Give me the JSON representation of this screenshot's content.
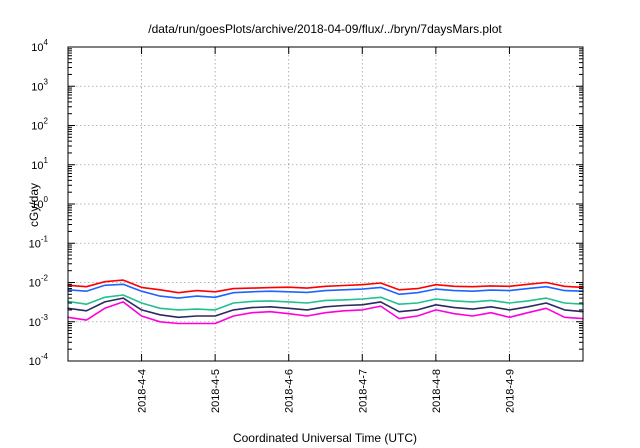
{
  "chart_data": {
    "type": "line",
    "title": "/data/run/goesPlots/archive/2018-04-09/flux/../bryn/7daysMars.plot",
    "xlabel": "Coordinated Universal Time (UTC)",
    "ylabel": "cGy/day",
    "y_scale": "log",
    "ylim": [
      0.0001,
      10000
    ],
    "y_ticks": [
      {
        "base": "10",
        "exp": "-4",
        "value": 0.0001
      },
      {
        "base": "10",
        "exp": "-3",
        "value": 0.001
      },
      {
        "base": "10",
        "exp": "-2",
        "value": 0.01
      },
      {
        "base": "10",
        "exp": "-1",
        "value": 0.1
      },
      {
        "base": "10",
        "exp": "0",
        "value": 1
      },
      {
        "base": "10",
        "exp": "1",
        "value": 10
      },
      {
        "base": "10",
        "exp": "2",
        "value": 100
      },
      {
        "base": "10",
        "exp": "3",
        "value": 1000
      },
      {
        "base": "10",
        "exp": "4",
        "value": 10000
      }
    ],
    "xlim": [
      "2018-04-03 00:00",
      "2018-04-10 00:00"
    ],
    "x_ticks": [
      "2018-4-4",
      "2018-4-5",
      "2018-4-6",
      "2018-4-7",
      "2018-4-8",
      "2018-4-9"
    ],
    "x_tick_dates": [
      "2018-04-04",
      "2018-04-05",
      "2018-04-06",
      "2018-04-07",
      "2018-04-08",
      "2018-04-09"
    ],
    "grid": true,
    "x": [
      "04-03 00:00",
      "04-03 06:00",
      "04-03 12:00",
      "04-03 18:00",
      "04-04 00:00",
      "04-04 06:00",
      "04-04 12:00",
      "04-04 18:00",
      "04-05 00:00",
      "04-05 06:00",
      "04-05 12:00",
      "04-05 18:00",
      "04-06 00:00",
      "04-06 06:00",
      "04-06 12:00",
      "04-06 18:00",
      "04-07 00:00",
      "04-07 06:00",
      "04-07 12:00",
      "04-07 18:00",
      "04-08 00:00",
      "04-08 06:00",
      "04-08 12:00",
      "04-08 18:00",
      "04-09 00:00",
      "04-09 06:00",
      "04-09 12:00",
      "04-09 18:00",
      "04-10 00:00"
    ],
    "series": [
      {
        "color": "#ff0000",
        "values": [
          0.0085,
          0.0078,
          0.0105,
          0.0115,
          0.0075,
          0.0065,
          0.0055,
          0.0062,
          0.0058,
          0.007,
          0.0072,
          0.0074,
          0.0076,
          0.0072,
          0.008,
          0.0084,
          0.0088,
          0.0097,
          0.0065,
          0.007,
          0.0088,
          0.008,
          0.0078,
          0.0082,
          0.008,
          0.009,
          0.01,
          0.008,
          0.0075
        ]
      },
      {
        "color": "#1e64ff",
        "values": [
          0.0065,
          0.006,
          0.0085,
          0.009,
          0.006,
          0.0045,
          0.004,
          0.0045,
          0.0042,
          0.0055,
          0.0058,
          0.006,
          0.0058,
          0.0056,
          0.0062,
          0.0065,
          0.0068,
          0.0075,
          0.005,
          0.0055,
          0.0068,
          0.0062,
          0.006,
          0.0064,
          0.0062,
          0.007,
          0.0078,
          0.0062,
          0.006
        ]
      },
      {
        "color": "#20c090",
        "values": [
          0.0033,
          0.0028,
          0.0042,
          0.0048,
          0.003,
          0.0022,
          0.002,
          0.0021,
          0.002,
          0.003,
          0.0033,
          0.0034,
          0.0032,
          0.003,
          0.0035,
          0.0036,
          0.0038,
          0.0042,
          0.0028,
          0.003,
          0.0038,
          0.0034,
          0.0032,
          0.0035,
          0.003,
          0.0034,
          0.004,
          0.003,
          0.0028
        ]
      },
      {
        "color": "#2a2a60",
        "values": [
          0.0022,
          0.0019,
          0.0032,
          0.004,
          0.002,
          0.0015,
          0.0013,
          0.0014,
          0.0014,
          0.002,
          0.0023,
          0.0024,
          0.0022,
          0.002,
          0.0024,
          0.0026,
          0.0027,
          0.0032,
          0.0018,
          0.002,
          0.0027,
          0.0023,
          0.0021,
          0.0024,
          0.002,
          0.0024,
          0.003,
          0.002,
          0.0018
        ]
      },
      {
        "color": "#ff00dd",
        "values": [
          0.0013,
          0.0011,
          0.0022,
          0.0032,
          0.0014,
          0.001,
          0.0009,
          0.0009,
          0.0009,
          0.0014,
          0.0017,
          0.0018,
          0.0016,
          0.0014,
          0.0017,
          0.0019,
          0.002,
          0.0025,
          0.0012,
          0.0014,
          0.002,
          0.0016,
          0.0014,
          0.0017,
          0.0013,
          0.0017,
          0.0022,
          0.0013,
          0.0012
        ]
      }
    ]
  }
}
